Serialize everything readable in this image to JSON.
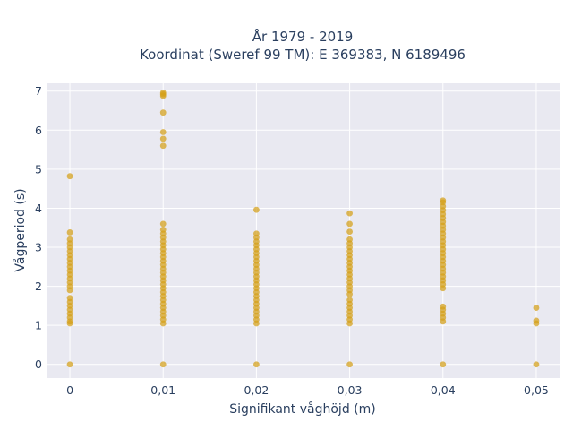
{
  "chart_data": {
    "type": "scatter",
    "title_line1": "År 1979 - 2019",
    "title_line2": "Koordinat (Sweref 99 TM): E 369383, N 6189496",
    "xlabel": "Signifikant våghöjd (m)",
    "ylabel": "Vågperiod (s)",
    "x_ticks": [
      {
        "value": 0,
        "label": "0"
      },
      {
        "value": 0.01,
        "label": "0,01"
      },
      {
        "value": 0.02,
        "label": "0,02"
      },
      {
        "value": 0.03,
        "label": "0,03"
      },
      {
        "value": 0.04,
        "label": "0,04"
      },
      {
        "value": 0.05,
        "label": "0,05"
      }
    ],
    "y_ticks": [
      {
        "value": 0,
        "label": "0"
      },
      {
        "value": 1,
        "label": "1"
      },
      {
        "value": 2,
        "label": "2"
      },
      {
        "value": 3,
        "label": "3"
      },
      {
        "value": 4,
        "label": "4"
      },
      {
        "value": 5,
        "label": "5"
      },
      {
        "value": 6,
        "label": "6"
      },
      {
        "value": 7,
        "label": "7"
      }
    ],
    "xlim": [
      -0.0025,
      0.0525
    ],
    "ylim": [
      -0.35,
      7.2
    ],
    "grid": true,
    "legend": "none",
    "colors": {
      "marker": "#d4a017",
      "plot_background": "#e9e9f1",
      "grid": "#ffffff",
      "text": "#2a3f5f"
    },
    "series": [
      {
        "x": 0,
        "y": [
          0,
          1.05,
          1.1,
          1.2,
          1.3,
          1.4,
          1.5,
          1.6,
          1.7,
          1.9,
          2.0,
          2.1,
          2.2,
          2.3,
          2.4,
          2.5,
          2.6,
          2.7,
          2.8,
          2.9,
          3.0,
          3.1,
          3.2,
          3.38,
          4.82
        ]
      },
      {
        "x": 0.01,
        "y": [
          0,
          1.05,
          1.15,
          1.25,
          1.35,
          1.45,
          1.55,
          1.65,
          1.75,
          1.85,
          1.95,
          2.05,
          2.15,
          2.25,
          2.35,
          2.45,
          2.55,
          2.65,
          2.75,
          2.85,
          2.95,
          3.05,
          3.15,
          3.25,
          3.35,
          3.45,
          3.6,
          5.6,
          5.78,
          5.95,
          6.45,
          6.88,
          6.92,
          6.96
        ]
      },
      {
        "x": 0.02,
        "y": [
          0,
          1.05,
          1.15,
          1.25,
          1.35,
          1.45,
          1.55,
          1.65,
          1.75,
          1.85,
          1.95,
          2.05,
          2.15,
          2.25,
          2.35,
          2.45,
          2.55,
          2.65,
          2.75,
          2.85,
          2.95,
          3.05,
          3.15,
          3.25,
          3.35,
          3.96
        ]
      },
      {
        "x": 0.03,
        "y": [
          0,
          1.05,
          1.15,
          1.25,
          1.35,
          1.45,
          1.55,
          1.65,
          1.8,
          1.9,
          2.0,
          2.1,
          2.2,
          2.3,
          2.4,
          2.5,
          2.6,
          2.7,
          2.8,
          2.9,
          3.0,
          3.1,
          3.2,
          3.4,
          3.6,
          3.87
        ]
      },
      {
        "x": 0.04,
        "y": [
          0,
          1.1,
          1.2,
          1.3,
          1.4,
          1.48,
          1.95,
          2.05,
          2.15,
          2.25,
          2.35,
          2.45,
          2.55,
          2.65,
          2.75,
          2.85,
          2.95,
          3.05,
          3.15,
          3.25,
          3.35,
          3.45,
          3.55,
          3.65,
          3.75,
          3.85,
          3.95,
          4.05,
          4.15,
          4.2
        ]
      },
      {
        "x": 0.05,
        "y": [
          0,
          1.05,
          1.12,
          1.45
        ]
      }
    ]
  }
}
